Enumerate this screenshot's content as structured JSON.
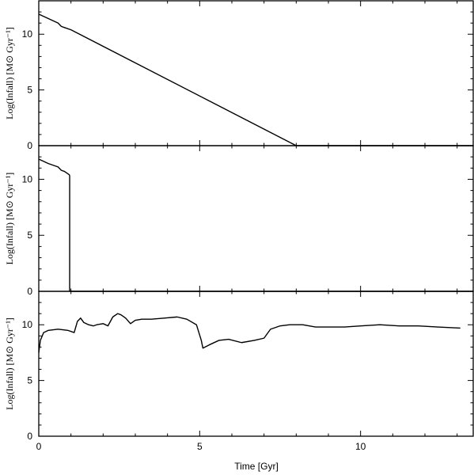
{
  "chart_data": [
    {
      "type": "line",
      "ylabel": "Log(Infall) [M⊙ Gyr⁻¹]",
      "xlim": [
        0,
        13.5
      ],
      "ylim": [
        0,
        13
      ],
      "yticks": [
        0,
        5,
        10
      ],
      "xticks": [
        0,
        5,
        10
      ],
      "series": [
        {
          "x": [
            0.0,
            0.3,
            0.6,
            0.7,
            0.8,
            1.0,
            8.0,
            13.5
          ],
          "y": [
            11.8,
            11.4,
            11.0,
            10.7,
            10.6,
            10.4,
            0.0,
            0.0
          ]
        }
      ]
    },
    {
      "type": "line",
      "ylabel": "Log(Infall) [M⊙ Gyr⁻¹]",
      "xlim": [
        0,
        13.5
      ],
      "ylim": [
        0,
        13
      ],
      "yticks": [
        0,
        5,
        10
      ],
      "xticks": [
        0,
        5,
        10
      ],
      "series": [
        {
          "x": [
            0.0,
            0.3,
            0.6,
            0.7,
            0.8,
            0.95,
            0.96,
            0.96,
            13.5
          ],
          "y": [
            11.8,
            11.4,
            11.1,
            10.8,
            10.7,
            10.4,
            10.3,
            0.0,
            0.0
          ]
        }
      ]
    },
    {
      "type": "line",
      "ylabel": "Log(Infall) [M⊙ Gyr⁻¹]",
      "xlabel": "Time [Gyr]",
      "xlim": [
        0,
        13.5
      ],
      "ylim": [
        0,
        13
      ],
      "yticks": [
        0,
        5,
        10
      ],
      "xticks": [
        0,
        5,
        10
      ],
      "series": [
        {
          "x": [
            0.0,
            0.05,
            0.15,
            0.3,
            0.6,
            0.9,
            1.1,
            1.2,
            1.3,
            1.4,
            1.55,
            1.7,
            1.8,
            2.0,
            2.15,
            2.3,
            2.45,
            2.55,
            2.7,
            2.85,
            3.0,
            3.2,
            3.5,
            3.9,
            4.3,
            4.6,
            4.9,
            5.05,
            5.1,
            5.3,
            5.6,
            5.9,
            6.3,
            6.7,
            7.0,
            7.2,
            7.5,
            7.8,
            8.2,
            8.6,
            9.0,
            9.5,
            10.0,
            10.6,
            11.2,
            11.8,
            12.4,
            13.1
          ],
          "y": [
            7.5,
            8.6,
            9.3,
            9.5,
            9.6,
            9.5,
            9.3,
            10.3,
            10.6,
            10.2,
            10.0,
            9.9,
            10.0,
            10.1,
            9.9,
            10.7,
            11.0,
            10.9,
            10.6,
            10.1,
            10.4,
            10.5,
            10.5,
            10.6,
            10.7,
            10.5,
            10.0,
            8.6,
            7.9,
            8.2,
            8.6,
            8.7,
            8.4,
            8.6,
            8.8,
            9.6,
            9.9,
            10.0,
            10.0,
            9.8,
            9.8,
            9.8,
            9.9,
            10.0,
            9.9,
            9.9,
            9.8,
            9.7
          ]
        }
      ]
    }
  ],
  "tick_labels": {
    "y": [
      "0",
      "5",
      "10"
    ],
    "x": [
      "0",
      "5",
      "10"
    ]
  }
}
